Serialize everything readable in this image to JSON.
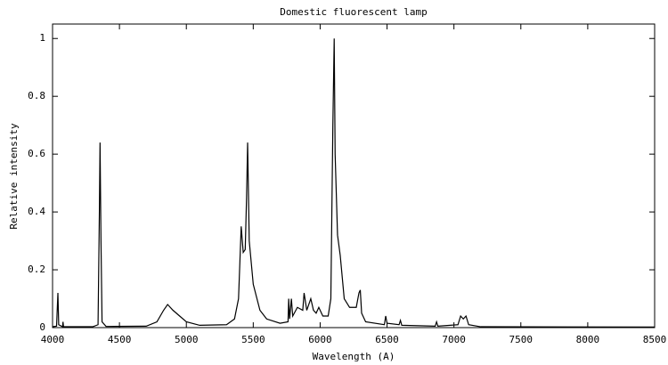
{
  "chart_data": {
    "type": "line",
    "title": "Domestic fluorescent lamp",
    "x_label": "Wavelength (A)",
    "y_label": "Relative intensity",
    "xlim": [
      4000,
      8500
    ],
    "ylim": [
      0,
      1.05
    ],
    "xticks": [
      4000,
      4500,
      5000,
      5500,
      6000,
      6500,
      7000,
      7500,
      8000,
      8500
    ],
    "yticks": [
      0,
      0.2,
      0.4,
      0.6,
      0.8,
      1
    ],
    "grid": false,
    "series": [
      {
        "name": "Domestic fluorescent lamp",
        "color": "#000000",
        "x": [
          4000,
          4030,
          4040,
          4046,
          4075,
          4078,
          4082,
          4300,
          4340,
          4350,
          4355,
          4362,
          4370,
          4400,
          4700,
          4780,
          4830,
          4860,
          4900,
          4950,
          5000,
          5100,
          5300,
          5360,
          5390,
          5410,
          5425,
          5440,
          5450,
          5458,
          5470,
          5500,
          5550,
          5600,
          5700,
          5760,
          5765,
          5772,
          5785,
          5795,
          5830,
          5870,
          5880,
          5900,
          5930,
          5950,
          5970,
          5990,
          6020,
          6060,
          6080,
          6095,
          6105,
          6112,
          6130,
          6150,
          6180,
          6220,
          6270,
          6290,
          6300,
          6310,
          6340,
          6480,
          6490,
          6500,
          6590,
          6600,
          6610,
          6860,
          6870,
          6880,
          7030,
          7050,
          7070,
          7090,
          7110,
          7200,
          8500
        ],
        "values": [
          0.003,
          0.005,
          0.12,
          0.01,
          0.003,
          0.02,
          0.003,
          0.003,
          0.01,
          0.4,
          0.64,
          0.3,
          0.02,
          0.004,
          0.005,
          0.02,
          0.06,
          0.08,
          0.06,
          0.04,
          0.02,
          0.008,
          0.01,
          0.03,
          0.1,
          0.35,
          0.26,
          0.27,
          0.45,
          0.64,
          0.3,
          0.15,
          0.06,
          0.03,
          0.015,
          0.02,
          0.1,
          0.03,
          0.1,
          0.04,
          0.07,
          0.06,
          0.12,
          0.06,
          0.1,
          0.06,
          0.05,
          0.07,
          0.04,
          0.04,
          0.1,
          0.7,
          1.0,
          0.6,
          0.32,
          0.25,
          0.1,
          0.07,
          0.07,
          0.12,
          0.13,
          0.05,
          0.02,
          0.01,
          0.04,
          0.015,
          0.01,
          0.025,
          0.008,
          0.005,
          0.02,
          0.005,
          0.01,
          0.04,
          0.03,
          0.04,
          0.01,
          0.003,
          0.002
        ]
      }
    ]
  }
}
